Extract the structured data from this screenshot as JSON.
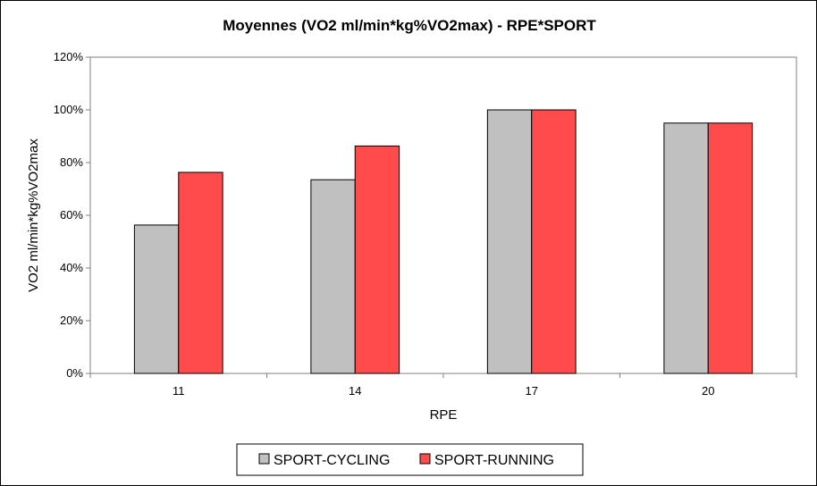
{
  "chart_data": {
    "type": "bar",
    "title": "Moyennes (VO2 ml/min*kg%VO2max) - RPE*SPORT",
    "xlabel": "RPE",
    "ylabel": "VO2 ml/min*kg%VO2max",
    "categories": [
      "11",
      "14",
      "17",
      "20"
    ],
    "ylim": [
      0,
      120
    ],
    "yticks": [
      0,
      20,
      40,
      60,
      80,
      100,
      120
    ],
    "ytick_labels": [
      "0%",
      "20%",
      "40%",
      "60%",
      "80%",
      "100%",
      "120%"
    ],
    "grid": false,
    "legend_position": "bottom",
    "series": [
      {
        "name": "SPORT-CYCLING",
        "color": "#c0c0c0",
        "values": [
          56.3,
          73.5,
          100,
          95
        ]
      },
      {
        "name": "SPORT-RUNNING",
        "color": "#ff4b4b",
        "values": [
          76.3,
          86.3,
          100,
          95
        ]
      }
    ]
  }
}
